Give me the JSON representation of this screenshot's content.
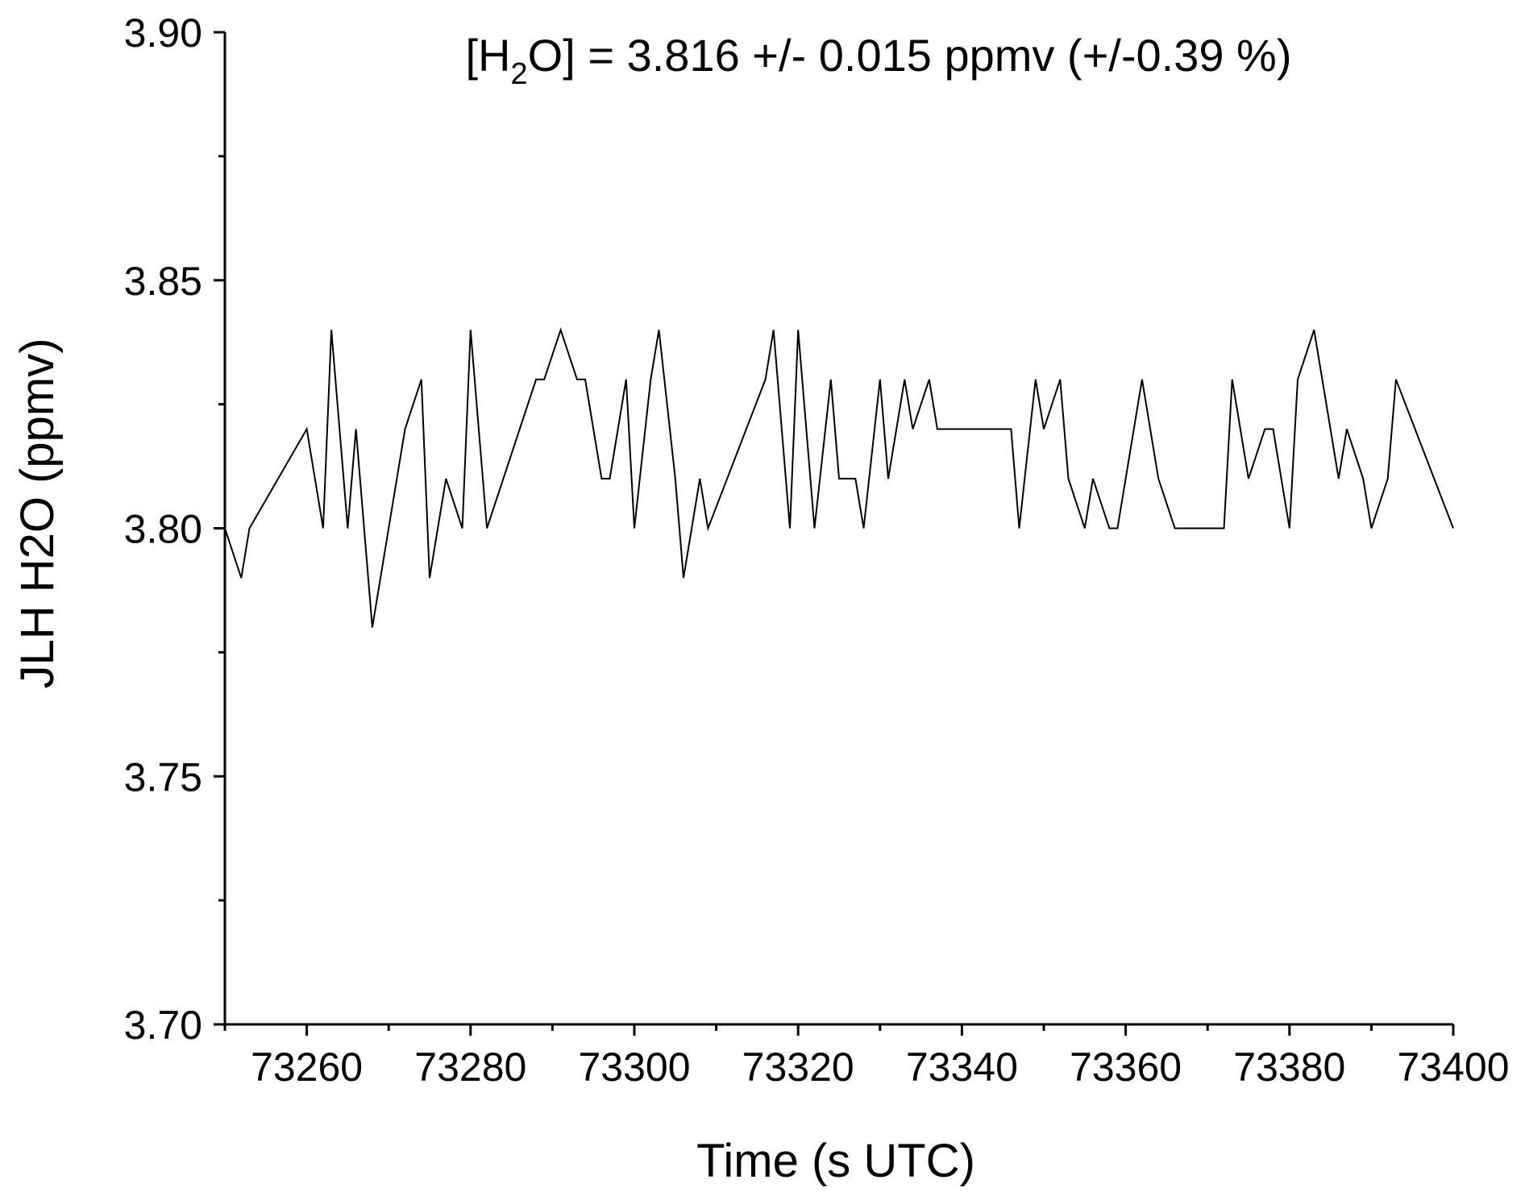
{
  "chart_data": {
    "type": "line",
    "title": "",
    "annotation": {
      "prefix": "[H",
      "subscript": "2",
      "suffix": "O] = 3.816 +/- 0.015 ppmv (+/-0.39 %)"
    },
    "xlabel": "Time (s UTC)",
    "ylabel": "JLH H2O (ppmv)",
    "xlim": [
      73250,
      73400
    ],
    "ylim": [
      3.7,
      3.9
    ],
    "xticks": [
      "73260",
      "73280",
      "73300",
      "73320",
      "73340",
      "73360",
      "73380",
      "73400"
    ],
    "yticks": [
      "3.70",
      "3.75",
      "3.80",
      "3.85",
      "3.90"
    ],
    "grid": false,
    "legend": "none",
    "line_color": "#000000",
    "series": [
      {
        "x": [
          73250,
          73252,
          73253,
          73260,
          73262,
          73263,
          73265,
          73266,
          73268,
          73272,
          73274,
          73275,
          73277,
          73279,
          73280,
          73282,
          73288,
          73289,
          73291,
          73293,
          73294,
          73296,
          73297,
          73299,
          73300,
          73302,
          73303,
          73305,
          73306,
          73308,
          73309,
          73316,
          73317,
          73319,
          73320,
          73322,
          73324,
          73325,
          73327,
          73328,
          73330,
          73331,
          73333,
          73334,
          73336,
          73337,
          73346,
          73347,
          73349,
          73350,
          73352,
          73353,
          73355,
          73356,
          73358,
          73359,
          73362,
          73364,
          73366,
          73368,
          73372,
          73373,
          73375,
          73377,
          73378,
          73380,
          73381,
          73383,
          73386,
          73387,
          73389,
          73390,
          73392,
          73393,
          73400
        ],
        "y": [
          3.8,
          3.79,
          3.8,
          3.82,
          3.8,
          3.84,
          3.8,
          3.82,
          3.78,
          3.82,
          3.83,
          3.79,
          3.81,
          3.8,
          3.84,
          3.8,
          3.83,
          3.83,
          3.84,
          3.83,
          3.83,
          3.81,
          3.81,
          3.83,
          3.8,
          3.83,
          3.84,
          3.81,
          3.79,
          3.81,
          3.8,
          3.83,
          3.84,
          3.8,
          3.84,
          3.8,
          3.83,
          3.81,
          3.81,
          3.8,
          3.83,
          3.81,
          3.83,
          3.82,
          3.83,
          3.82,
          3.82,
          3.8,
          3.83,
          3.82,
          3.83,
          3.81,
          3.8,
          3.81,
          3.8,
          3.8,
          3.83,
          3.81,
          3.8,
          3.8,
          3.8,
          3.83,
          3.81,
          3.82,
          3.82,
          3.8,
          3.83,
          3.84,
          3.81,
          3.82,
          3.81,
          3.8,
          3.81,
          3.83,
          3.8
        ]
      }
    ]
  }
}
